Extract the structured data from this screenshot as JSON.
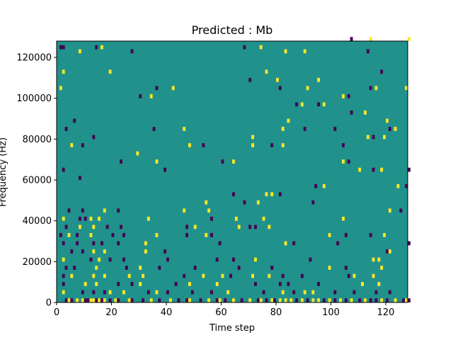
{
  "chart_data": {
    "type": "heatmap",
    "title": "Predicted : Mb",
    "xlabel": "Time step",
    "ylabel": "Frequency (Hz)",
    "xlim": [
      0,
      128
    ],
    "ylim": [
      0,
      128000
    ],
    "x_ticks": [
      0,
      20,
      40,
      60,
      80,
      100,
      120
    ],
    "x_tick_labels": [
      "0",
      "20",
      "40",
      "60",
      "80",
      "100",
      "120"
    ],
    "y_ticks": [
      0,
      20000,
      40000,
      60000,
      80000,
      100000,
      120000
    ],
    "y_tick_labels": [
      "0",
      "20000",
      "40000",
      "60000",
      "80000",
      "100000",
      "120000"
    ],
    "grid": false,
    "legend": "none",
    "colormap": {
      "low": "#440154",
      "mid": "#21918c",
      "high": "#fde725"
    },
    "background_value": 0,
    "bin_width_hz": 2000,
    "cells": [
      [
        1,
        124000,
        -1
      ],
      [
        2,
        124000,
        -1
      ],
      [
        14,
        124000,
        -1
      ],
      [
        16,
        124000,
        1
      ],
      [
        107,
        128000,
        -1
      ],
      [
        114,
        128000,
        1
      ],
      [
        128,
        128000,
        1
      ],
      [
        68,
        124000,
        -1
      ],
      [
        74,
        124000,
        1
      ],
      [
        83,
        122000,
        1
      ],
      [
        90,
        122000,
        1
      ],
      [
        8,
        122000,
        1
      ],
      [
        27,
        122000,
        -1
      ],
      [
        113,
        122000,
        -1
      ],
      [
        2,
        112000,
        1
      ],
      [
        19,
        112000,
        1
      ],
      [
        76,
        112000,
        1
      ],
      [
        118,
        112000,
        -1
      ],
      [
        70,
        108000,
        -1
      ],
      [
        80,
        108000,
        1
      ],
      [
        95,
        108000,
        1
      ],
      [
        1,
        104000,
        1
      ],
      [
        36,
        104000,
        -1
      ],
      [
        42,
        104000,
        1
      ],
      [
        81,
        104000,
        -1
      ],
      [
        91,
        104000,
        1
      ],
      [
        114,
        104000,
        -1
      ],
      [
        116,
        104000,
        1
      ],
      [
        127,
        104000,
        1
      ],
      [
        30,
        100000,
        -1
      ],
      [
        34,
        100000,
        1
      ],
      [
        104,
        100000,
        1
      ],
      [
        106,
        100000,
        -1
      ],
      [
        87,
        96000,
        -1
      ],
      [
        89,
        96000,
        1
      ],
      [
        95,
        96000,
        -1
      ],
      [
        97,
        96000,
        1
      ],
      [
        107,
        92000,
        -1
      ],
      [
        112,
        92000,
        1
      ],
      [
        6,
        88000,
        -1
      ],
      [
        84,
        88000,
        1
      ],
      [
        120,
        88000,
        1
      ],
      [
        3,
        84000,
        -1
      ],
      [
        35,
        84000,
        -1
      ],
      [
        46,
        84000,
        1
      ],
      [
        82,
        84000,
        1
      ],
      [
        90,
        84000,
        -1
      ],
      [
        101,
        84000,
        -1
      ],
      [
        121,
        84000,
        -1
      ],
      [
        123,
        84000,
        1
      ],
      [
        13,
        80000,
        -1
      ],
      [
        113,
        80000,
        1
      ],
      [
        115,
        80000,
        -1
      ],
      [
        119,
        80000,
        1
      ],
      [
        71,
        80000,
        1
      ],
      [
        5,
        76000,
        1
      ],
      [
        9,
        76000,
        -1
      ],
      [
        48,
        76000,
        1
      ],
      [
        53,
        76000,
        -1
      ],
      [
        71,
        76000,
        1
      ],
      [
        78,
        76000,
        -1
      ],
      [
        82,
        76000,
        1
      ],
      [
        104,
        76000,
        -1
      ],
      [
        29,
        72000,
        1
      ],
      [
        23,
        68000,
        -1
      ],
      [
        36,
        68000,
        1
      ],
      [
        60,
        68000,
        -1
      ],
      [
        64,
        68000,
        1
      ],
      [
        104,
        68000,
        1
      ],
      [
        106,
        68000,
        -1
      ],
      [
        39,
        64000,
        -1
      ],
      [
        110,
        64000,
        1
      ],
      [
        115,
        64000,
        -1
      ],
      [
        118,
        64000,
        1
      ],
      [
        128,
        64000,
        -1
      ],
      [
        2,
        64000,
        -1
      ],
      [
        8,
        60000,
        -1
      ],
      [
        94,
        56000,
        -1
      ],
      [
        97,
        56000,
        1
      ],
      [
        124,
        56000,
        1
      ],
      [
        127,
        56000,
        -1
      ],
      [
        64,
        52000,
        -1
      ],
      [
        76,
        52000,
        1
      ],
      [
        78,
        52000,
        1
      ],
      [
        81,
        52000,
        -1
      ],
      [
        54,
        48000,
        1
      ],
      [
        68,
        48000,
        -1
      ],
      [
        93,
        48000,
        -1
      ],
      [
        73,
        48000,
        1
      ],
      [
        4,
        44000,
        -1
      ],
      [
        9,
        44000,
        -1
      ],
      [
        17,
        44000,
        1
      ],
      [
        22,
        44000,
        -1
      ],
      [
        46,
        44000,
        1
      ],
      [
        55,
        44000,
        1
      ],
      [
        125,
        44000,
        -1
      ],
      [
        121,
        44000,
        1
      ],
      [
        2,
        40000,
        1
      ],
      [
        8,
        40000,
        -1
      ],
      [
        10,
        40000,
        -1
      ],
      [
        12,
        40000,
        1
      ],
      [
        15,
        40000,
        1
      ],
      [
        33,
        40000,
        1
      ],
      [
        56,
        40000,
        -1
      ],
      [
        65,
        40000,
        1
      ],
      [
        75,
        40000,
        1
      ],
      [
        104,
        40000,
        1
      ],
      [
        3,
        36000,
        -1
      ],
      [
        8,
        36000,
        1
      ],
      [
        13,
        36000,
        1
      ],
      [
        18,
        36000,
        -1
      ],
      [
        23,
        36000,
        -1
      ],
      [
        47,
        36000,
        -1
      ],
      [
        50,
        36000,
        1
      ],
      [
        66,
        36000,
        1
      ],
      [
        70,
        36000,
        -1
      ],
      [
        72,
        36000,
        -1
      ],
      [
        77,
        36000,
        1
      ],
      [
        1,
        32000,
        -1
      ],
      [
        4,
        32000,
        1
      ],
      [
        7,
        32000,
        -1
      ],
      [
        12,
        32000,
        1
      ],
      [
        20,
        32000,
        -1
      ],
      [
        24,
        32000,
        -1
      ],
      [
        36,
        32000,
        1
      ],
      [
        47,
        32000,
        -1
      ],
      [
        54,
        32000,
        1
      ],
      [
        56,
        32000,
        -1
      ],
      [
        99,
        32000,
        1
      ],
      [
        105,
        32000,
        -1
      ],
      [
        114,
        32000,
        -1
      ],
      [
        119,
        32000,
        1
      ],
      [
        2,
        28000,
        -1
      ],
      [
        7,
        28000,
        -1
      ],
      [
        13,
        28000,
        -1
      ],
      [
        16,
        28000,
        -1
      ],
      [
        22,
        28000,
        -1
      ],
      [
        32,
        28000,
        1
      ],
      [
        59,
        28000,
        -1
      ],
      [
        86,
        28000,
        -1
      ],
      [
        83,
        28000,
        1
      ],
      [
        102,
        28000,
        -1
      ],
      [
        128,
        28000,
        -1
      ],
      [
        5,
        24000,
        -1
      ],
      [
        9,
        24000,
        -1
      ],
      [
        13,
        24000,
        1
      ],
      [
        17,
        24000,
        1
      ],
      [
        32,
        24000,
        1
      ],
      [
        39,
        24000,
        -1
      ],
      [
        120,
        24000,
        -1
      ],
      [
        121,
        24000,
        1
      ],
      [
        2,
        20000,
        1
      ],
      [
        12,
        20000,
        -1
      ],
      [
        15,
        20000,
        1
      ],
      [
        19,
        20000,
        -1
      ],
      [
        24,
        20000,
        -1
      ],
      [
        40,
        20000,
        -1
      ],
      [
        58,
        20000,
        -1
      ],
      [
        64,
        20000,
        -1
      ],
      [
        72,
        20000,
        1
      ],
      [
        92,
        20000,
        -1
      ],
      [
        115,
        20000,
        1
      ],
      [
        117,
        20000,
        1
      ],
      [
        3,
        16000,
        -1
      ],
      [
        6,
        16000,
        -1
      ],
      [
        14,
        16000,
        1
      ],
      [
        25,
        16000,
        -1
      ],
      [
        30,
        16000,
        1
      ],
      [
        37,
        16000,
        -1
      ],
      [
        50,
        16000,
        -1
      ],
      [
        66,
        16000,
        -1
      ],
      [
        78,
        16000,
        -1
      ],
      [
        99,
        16000,
        1
      ],
      [
        105,
        16000,
        -1
      ],
      [
        118,
        16000,
        1
      ],
      [
        2,
        12000,
        -1
      ],
      [
        5,
        12000,
        1
      ],
      [
        13,
        12000,
        1
      ],
      [
        17,
        12000,
        1
      ],
      [
        26,
        12000,
        1
      ],
      [
        31,
        12000,
        1
      ],
      [
        46,
        12000,
        -1
      ],
      [
        53,
        12000,
        1
      ],
      [
        60,
        12000,
        1
      ],
      [
        63,
        12000,
        -1
      ],
      [
        71,
        12000,
        1
      ],
      [
        77,
        12000,
        1
      ],
      [
        82,
        12000,
        -1
      ],
      [
        89,
        12000,
        -1
      ],
      [
        106,
        12000,
        -1
      ],
      [
        108,
        12000,
        1
      ],
      [
        115,
        12000,
        1
      ],
      [
        2,
        8000,
        -1
      ],
      [
        10,
        8000,
        1
      ],
      [
        14,
        8000,
        1
      ],
      [
        22,
        8000,
        -1
      ],
      [
        27,
        8000,
        -1
      ],
      [
        30,
        8000,
        1
      ],
      [
        43,
        8000,
        -1
      ],
      [
        48,
        8000,
        1
      ],
      [
        58,
        8000,
        1
      ],
      [
        72,
        8000,
        -1
      ],
      [
        81,
        8000,
        -1
      ],
      [
        84,
        8000,
        -1
      ],
      [
        95,
        8000,
        -1
      ],
      [
        111,
        8000,
        1
      ],
      [
        117,
        8000,
        1
      ],
      [
        2,
        4000,
        1
      ],
      [
        9,
        4000,
        -1
      ],
      [
        13,
        4000,
        -1
      ],
      [
        17,
        4000,
        -1
      ],
      [
        19,
        4000,
        1
      ],
      [
        24,
        4000,
        1
      ],
      [
        33,
        4000,
        -1
      ],
      [
        36,
        4000,
        1
      ],
      [
        40,
        4000,
        -1
      ],
      [
        49,
        4000,
        -1
      ],
      [
        56,
        4000,
        -1
      ],
      [
        62,
        4000,
        1
      ],
      [
        75,
        4000,
        -1
      ],
      [
        82,
        4000,
        1
      ],
      [
        86,
        4000,
        -1
      ],
      [
        90,
        4000,
        1
      ],
      [
        93,
        4000,
        1
      ],
      [
        101,
        4000,
        -1
      ],
      [
        108,
        4000,
        -1
      ],
      [
        116,
        4000,
        -1
      ],
      [
        121,
        4000,
        -1
      ],
      [
        3,
        0,
        -1
      ],
      [
        4,
        0,
        1
      ],
      [
        5,
        0,
        -1
      ],
      [
        7,
        0,
        1
      ],
      [
        9,
        0,
        1
      ],
      [
        10,
        0,
        -1
      ],
      [
        11,
        0,
        -1
      ],
      [
        12,
        0,
        1
      ],
      [
        13,
        0,
        1
      ],
      [
        14,
        0,
        -1
      ],
      [
        15,
        0,
        1
      ],
      [
        16,
        0,
        -1
      ],
      [
        17,
        0,
        1
      ],
      [
        19,
        0,
        -1
      ],
      [
        21,
        0,
        1
      ],
      [
        22,
        0,
        -1
      ],
      [
        26,
        0,
        1
      ],
      [
        27,
        0,
        -1
      ],
      [
        31,
        0,
        -1
      ],
      [
        34,
        0,
        1
      ],
      [
        37,
        0,
        -1
      ],
      [
        41,
        0,
        1
      ],
      [
        44,
        0,
        -1
      ],
      [
        47,
        0,
        -1
      ],
      [
        48,
        0,
        1
      ],
      [
        52,
        0,
        -1
      ],
      [
        55,
        0,
        1
      ],
      [
        58,
        0,
        -1
      ],
      [
        59,
        0,
        1
      ],
      [
        61,
        0,
        -1
      ],
      [
        64,
        0,
        1
      ],
      [
        67,
        0,
        -1
      ],
      [
        70,
        0,
        1
      ],
      [
        73,
        0,
        -1
      ],
      [
        74,
        0,
        1
      ],
      [
        76,
        0,
        -1
      ],
      [
        78,
        0,
        1
      ],
      [
        79,
        0,
        -1
      ],
      [
        81,
        0,
        1
      ],
      [
        83,
        0,
        1
      ],
      [
        85,
        0,
        1
      ],
      [
        87,
        0,
        -1
      ],
      [
        89,
        0,
        1
      ],
      [
        91,
        0,
        -1
      ],
      [
        93,
        0,
        1
      ],
      [
        95,
        0,
        1
      ],
      [
        97,
        0,
        -1
      ],
      [
        99,
        0,
        1
      ],
      [
        101,
        0,
        -1
      ],
      [
        103,
        0,
        1
      ],
      [
        105,
        0,
        -1
      ],
      [
        107,
        0,
        1
      ],
      [
        110,
        0,
        -1
      ],
      [
        112,
        0,
        1
      ],
      [
        114,
        0,
        -1
      ],
      [
        116,
        0,
        -1
      ],
      [
        118,
        0,
        1
      ],
      [
        120,
        0,
        -1
      ],
      [
        123,
        0,
        1
      ],
      [
        126,
        0,
        -1
      ],
      [
        127,
        0,
        1
      ],
      [
        128,
        0,
        -1
      ]
    ]
  }
}
